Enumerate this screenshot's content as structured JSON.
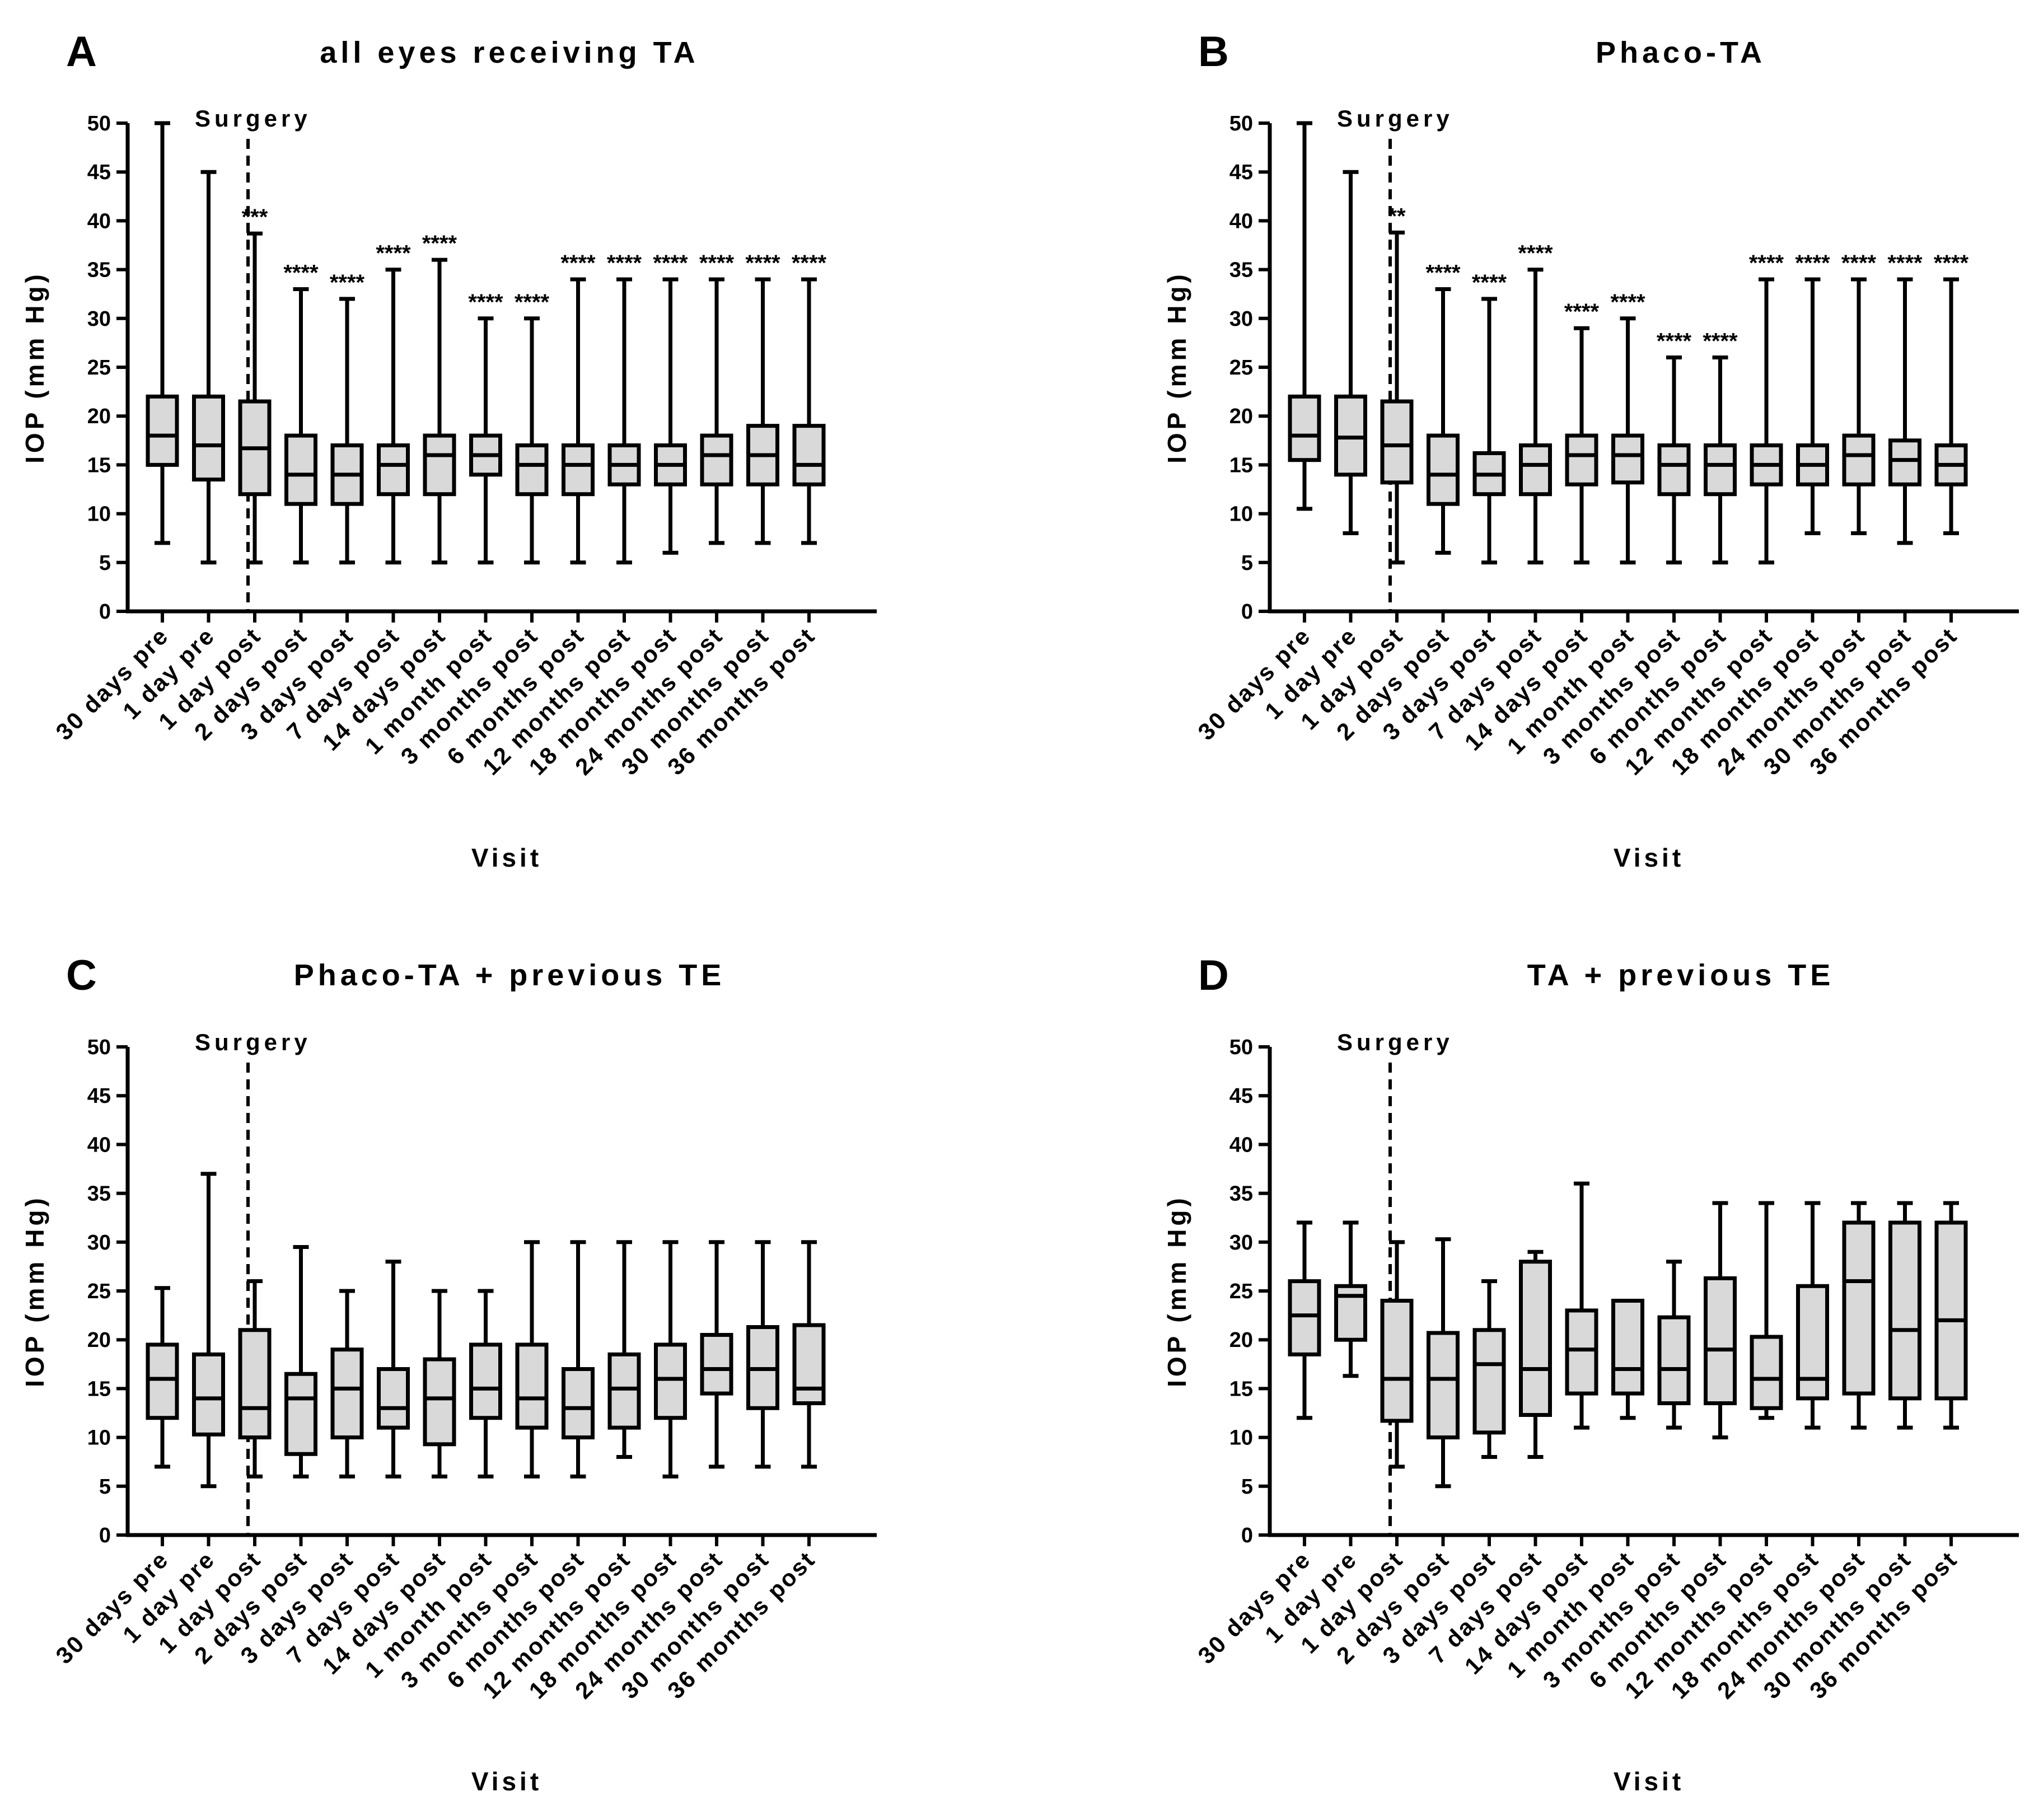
{
  "figure": {
    "axis_color": "#000000",
    "box_fill": "#d9d9d9"
  },
  "chart_data": [
    {
      "type": "box",
      "panel": "A",
      "title": "all eyes receiving TA",
      "xlabel": "Visit",
      "ylabel": "IOP (mm Hg)",
      "ylim": [
        0,
        50
      ],
      "yticks": [
        "0",
        "5",
        "10",
        "15",
        "20",
        "25",
        "30",
        "35",
        "40",
        "45",
        "50"
      ],
      "surgery_label": "Surgery",
      "categories": [
        "30 days pre",
        "1 day pre",
        "1 day post",
        "2 days post",
        "3 days post",
        "7 days post",
        "14 days post",
        "1 month post",
        "3 months post",
        "6 months post",
        "12 months post",
        "18 months post",
        "24 months post",
        "30 months post",
        "36 months post"
      ],
      "boxes": [
        {
          "min": 7,
          "q1": 15,
          "median": 18,
          "q3": 22,
          "max": 50
        },
        {
          "min": 5,
          "q1": 13.5,
          "median": 17,
          "q3": 22,
          "max": 45
        },
        {
          "min": 5,
          "q1": 12,
          "median": 16.7,
          "q3": 21.5,
          "max": 38.7
        },
        {
          "min": 5,
          "q1": 11,
          "median": 14,
          "q3": 18,
          "max": 33
        },
        {
          "min": 5,
          "q1": 11,
          "median": 14,
          "q3": 17,
          "max": 32
        },
        {
          "min": 5,
          "q1": 12,
          "median": 15,
          "q3": 17,
          "max": 35
        },
        {
          "min": 5,
          "q1": 12,
          "median": 16,
          "q3": 18,
          "max": 36
        },
        {
          "min": 5,
          "q1": 14,
          "median": 16,
          "q3": 18,
          "max": 30
        },
        {
          "min": 5,
          "q1": 12,
          "median": 15,
          "q3": 17,
          "max": 30
        },
        {
          "min": 5,
          "q1": 12,
          "median": 15,
          "q3": 17,
          "max": 34
        },
        {
          "min": 5,
          "q1": 13,
          "median": 15,
          "q3": 17,
          "max": 34
        },
        {
          "min": 6,
          "q1": 13,
          "median": 15,
          "q3": 17,
          "max": 34
        },
        {
          "min": 7,
          "q1": 13,
          "median": 16,
          "q3": 18,
          "max": 34
        },
        {
          "min": 7,
          "q1": 13,
          "median": 16,
          "q3": 19,
          "max": 34
        },
        {
          "min": 7,
          "q1": 13,
          "median": 15,
          "q3": 19,
          "max": 34
        }
      ],
      "significance": [
        "",
        "",
        "***",
        "****",
        "****",
        "****",
        "****",
        "****",
        "****",
        "****",
        "****",
        "****",
        "****",
        "****",
        "****"
      ]
    },
    {
      "type": "box",
      "panel": "B",
      "title": "Phaco-TA",
      "xlabel": "Visit",
      "ylabel": "IOP (mm Hg)",
      "ylim": [
        0,
        50
      ],
      "yticks": [
        "0",
        "5",
        "10",
        "15",
        "20",
        "25",
        "30",
        "35",
        "40",
        "45",
        "50"
      ],
      "surgery_label": "Surgery",
      "categories": [
        "30 days pre",
        "1 day pre",
        "1 day post",
        "2 days post",
        "3 days post",
        "7 days post",
        "14 days post",
        "1 month post",
        "3 months post",
        "6 months post",
        "12 months post",
        "18 months post",
        "24 months post",
        "30 months post",
        "36 months post"
      ],
      "boxes": [
        {
          "min": 10.5,
          "q1": 15.5,
          "median": 18,
          "q3": 22,
          "max": 50
        },
        {
          "min": 8,
          "q1": 14,
          "median": 17.8,
          "q3": 22,
          "max": 45
        },
        {
          "min": 5,
          "q1": 13.2,
          "median": 17,
          "q3": 21.5,
          "max": 38.8
        },
        {
          "min": 6,
          "q1": 11,
          "median": 14,
          "q3": 18,
          "max": 33
        },
        {
          "min": 5,
          "q1": 12,
          "median": 14,
          "q3": 16.2,
          "max": 32
        },
        {
          "min": 5,
          "q1": 12,
          "median": 15,
          "q3": 17,
          "max": 35
        },
        {
          "min": 5,
          "q1": 13,
          "median": 16,
          "q3": 18,
          "max": 29
        },
        {
          "min": 5,
          "q1": 13.2,
          "median": 16,
          "q3": 18,
          "max": 30
        },
        {
          "min": 5,
          "q1": 12,
          "median": 15,
          "q3": 17,
          "max": 26
        },
        {
          "min": 5,
          "q1": 12,
          "median": 15,
          "q3": 17,
          "max": 26
        },
        {
          "min": 5,
          "q1": 13,
          "median": 15,
          "q3": 17,
          "max": 34
        },
        {
          "min": 8,
          "q1": 13,
          "median": 15,
          "q3": 17,
          "max": 34
        },
        {
          "min": 8,
          "q1": 13,
          "median": 16,
          "q3": 18,
          "max": 34
        },
        {
          "min": 7,
          "q1": 13,
          "median": 15.5,
          "q3": 17.5,
          "max": 34
        },
        {
          "min": 8,
          "q1": 13,
          "median": 15,
          "q3": 17,
          "max": 34
        }
      ],
      "significance": [
        "",
        "",
        "**",
        "****",
        "****",
        "****",
        "****",
        "****",
        "****",
        "****",
        "****",
        "****",
        "****",
        "****",
        "****"
      ]
    },
    {
      "type": "box",
      "panel": "C",
      "title": "Phaco-TA + previous TE",
      "xlabel": "Visit",
      "ylabel": "IOP (mm Hg)",
      "ylim": [
        0,
        50
      ],
      "yticks": [
        "0",
        "5",
        "10",
        "15",
        "20",
        "25",
        "30",
        "35",
        "40",
        "45",
        "50"
      ],
      "surgery_label": "Surgery",
      "categories": [
        "30 days pre",
        "1 day pre",
        "1 day post",
        "2 days post",
        "3 days post",
        "7 days post",
        "14 days post",
        "1 month post",
        "3 months post",
        "6 months post",
        "12 months post",
        "18 months post",
        "24 months post",
        "30 months post",
        "36 months post"
      ],
      "boxes": [
        {
          "min": 7,
          "q1": 12,
          "median": 16,
          "q3": 19.5,
          "max": 25.3
        },
        {
          "min": 5,
          "q1": 10.3,
          "median": 14,
          "q3": 18.5,
          "max": 37
        },
        {
          "min": 6,
          "q1": 10,
          "median": 13,
          "q3": 21,
          "max": 26
        },
        {
          "min": 6,
          "q1": 8.3,
          "median": 14,
          "q3": 16.5,
          "max": 29.5
        },
        {
          "min": 6,
          "q1": 10,
          "median": 15,
          "q3": 19,
          "max": 25
        },
        {
          "min": 6,
          "q1": 11,
          "median": 13,
          "q3": 17,
          "max": 28
        },
        {
          "min": 6,
          "q1": 9.3,
          "median": 14,
          "q3": 18,
          "max": 25
        },
        {
          "min": 6,
          "q1": 12,
          "median": 15,
          "q3": 19.5,
          "max": 25
        },
        {
          "min": 6,
          "q1": 11,
          "median": 14,
          "q3": 19.5,
          "max": 30
        },
        {
          "min": 6,
          "q1": 10,
          "median": 13,
          "q3": 17,
          "max": 30
        },
        {
          "min": 8,
          "q1": 11,
          "median": 15,
          "q3": 18.5,
          "max": 30
        },
        {
          "min": 6,
          "q1": 12,
          "median": 16,
          "q3": 19.5,
          "max": 30
        },
        {
          "min": 7,
          "q1": 14.5,
          "median": 17,
          "q3": 20.5,
          "max": 30
        },
        {
          "min": 7,
          "q1": 13,
          "median": 17,
          "q3": 21.3,
          "max": 30
        },
        {
          "min": 7,
          "q1": 13.5,
          "median": 15,
          "q3": 21.5,
          "max": 30
        }
      ],
      "significance": []
    },
    {
      "type": "box",
      "panel": "D",
      "title": "TA + previous TE",
      "xlabel": "Visit",
      "ylabel": "IOP (mm Hg)",
      "ylim": [
        0,
        50
      ],
      "yticks": [
        "0",
        "5",
        "10",
        "15",
        "20",
        "25",
        "30",
        "35",
        "40",
        "45",
        "50"
      ],
      "surgery_label": "Surgery",
      "categories": [
        "30 days pre",
        "1 day pre",
        "1 day post",
        "2 days post",
        "3 days post",
        "7 days post",
        "14 days post",
        "1 month post",
        "3 months post",
        "6 months post",
        "12 months post",
        "18 months post",
        "24 months post",
        "30 months post",
        "36 months post"
      ],
      "boxes": [
        {
          "min": 12,
          "q1": 18.5,
          "median": 22.5,
          "q3": 26,
          "max": 32
        },
        {
          "min": 16.3,
          "q1": 20,
          "median": 24.5,
          "q3": 25.5,
          "max": 32
        },
        {
          "min": 7,
          "q1": 11.7,
          "median": 16,
          "q3": 24,
          "max": 30
        },
        {
          "min": 5,
          "q1": 10,
          "median": 16,
          "q3": 20.7,
          "max": 30.3
        },
        {
          "min": 8,
          "q1": 10.5,
          "median": 17.5,
          "q3": 21,
          "max": 26
        },
        {
          "min": 8,
          "q1": 12.3,
          "median": 17,
          "q3": 28,
          "max": 29
        },
        {
          "min": 11,
          "q1": 14.5,
          "median": 19,
          "q3": 23,
          "max": 36
        },
        {
          "min": 12,
          "q1": 14.5,
          "median": 17,
          "q3": 24,
          "max": 24
        },
        {
          "min": 11,
          "q1": 13.5,
          "median": 17,
          "q3": 22.3,
          "max": 28
        },
        {
          "min": 10,
          "q1": 13.5,
          "median": 19,
          "q3": 26.3,
          "max": 34
        },
        {
          "min": 12,
          "q1": 13,
          "median": 16,
          "q3": 20.3,
          "max": 34
        },
        {
          "min": 11,
          "q1": 14,
          "median": 16,
          "q3": 25.5,
          "max": 34
        },
        {
          "min": 11,
          "q1": 14.5,
          "median": 26,
          "q3": 32,
          "max": 34
        },
        {
          "min": 11,
          "q1": 14,
          "median": 21,
          "q3": 32,
          "max": 34
        },
        {
          "min": 11,
          "q1": 14,
          "median": 22,
          "q3": 32,
          "max": 34
        }
      ],
      "significance": []
    }
  ]
}
